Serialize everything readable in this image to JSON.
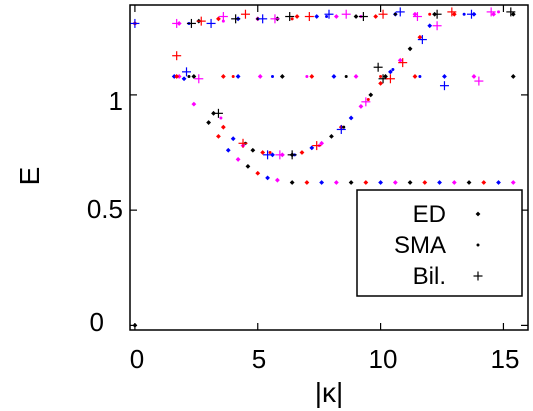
{
  "chart_data": {
    "type": "scatter",
    "title": "",
    "xlabel": "|κ|",
    "ylabel": "E",
    "xlim": [
      -0.2,
      16
    ],
    "ylim": [
      -0.02,
      1.39
    ],
    "xticks": [
      "0",
      "5",
      "10",
      "15"
    ],
    "yticks": [
      "0",
      "0.5",
      "1"
    ],
    "legend": {
      "placement": "lower-right",
      "entries": [
        "ED",
        "SMA",
        "Bil."
      ]
    },
    "colors": [
      "#000000",
      "#ff0000",
      "#0000ff",
      "#ff00ff"
    ],
    "series": [
      {
        "name": "ED",
        "marker": "diamond",
        "points": [
          [
            0,
            0.0
          ],
          [
            0,
            1.31
          ],
          [
            1.6,
            1.08
          ],
          [
            1.8,
            1.08
          ],
          [
            2.4,
            1.08
          ],
          [
            3.6,
            1.08
          ],
          [
            4.2,
            1.08
          ],
          [
            5.1,
            1.08
          ],
          [
            6.0,
            1.08
          ],
          [
            7.2,
            1.08
          ],
          [
            8.1,
            1.08
          ],
          [
            9.0,
            1.08
          ],
          [
            10.2,
            1.08
          ],
          [
            11.4,
            1.08
          ],
          [
            12.6,
            1.08
          ],
          [
            13.8,
            1.08
          ],
          [
            15.4,
            1.08
          ],
          [
            1.7,
            1.08
          ],
          [
            2.0,
            1.07
          ],
          [
            2.4,
            0.96
          ],
          [
            3.0,
            0.88
          ],
          [
            3.4,
            0.82
          ],
          [
            3.8,
            0.76
          ],
          [
            4.2,
            0.72
          ],
          [
            4.6,
            0.69
          ],
          [
            5.0,
            0.66
          ],
          [
            5.4,
            0.64
          ],
          [
            5.8,
            0.63
          ],
          [
            6.4,
            0.62
          ],
          [
            7.0,
            0.62
          ],
          [
            7.6,
            0.62
          ],
          [
            8.2,
            0.62
          ],
          [
            8.8,
            0.62
          ],
          [
            9.4,
            0.62
          ],
          [
            10.0,
            0.62
          ],
          [
            10.6,
            0.62
          ],
          [
            11.2,
            0.62
          ],
          [
            11.8,
            0.62
          ],
          [
            12.4,
            0.62
          ],
          [
            13.0,
            0.62
          ],
          [
            13.6,
            0.62
          ],
          [
            14.2,
            0.62
          ],
          [
            14.8,
            0.62
          ],
          [
            15.4,
            0.62
          ],
          [
            3.2,
            0.92
          ],
          [
            3.6,
            0.86
          ],
          [
            4.0,
            0.81
          ],
          [
            4.4,
            0.78
          ],
          [
            4.8,
            0.76
          ],
          [
            5.2,
            0.75
          ],
          [
            5.6,
            0.74
          ],
          [
            6.0,
            0.74
          ],
          [
            6.4,
            0.74
          ],
          [
            6.8,
            0.75
          ],
          [
            7.2,
            0.77
          ],
          [
            7.6,
            0.79
          ],
          [
            8.0,
            0.82
          ],
          [
            8.4,
            0.86
          ],
          [
            8.8,
            0.9
          ],
          [
            9.2,
            0.95
          ],
          [
            9.6,
            1.0
          ],
          [
            10.0,
            1.05
          ],
          [
            10.4,
            1.1
          ],
          [
            10.8,
            1.15
          ],
          [
            11.2,
            1.2
          ],
          [
            11.6,
            1.25
          ],
          [
            12.0,
            1.3
          ],
          [
            1.8,
            1.31
          ],
          [
            2.6,
            1.32
          ],
          [
            3.4,
            1.33
          ],
          [
            4.2,
            1.33
          ],
          [
            5.0,
            1.33
          ],
          [
            5.8,
            1.33
          ],
          [
            6.6,
            1.34
          ],
          [
            7.4,
            1.34
          ],
          [
            8.2,
            1.34
          ],
          [
            9.0,
            1.34
          ],
          [
            9.8,
            1.34
          ],
          [
            10.6,
            1.35
          ],
          [
            11.4,
            1.35
          ],
          [
            12.2,
            1.35
          ],
          [
            13.0,
            1.35
          ],
          [
            13.8,
            1.35
          ],
          [
            14.6,
            1.35
          ],
          [
            15.4,
            1.35
          ]
        ]
      },
      {
        "name": "SMA",
        "marker": "dot",
        "points": [
          [
            0,
            1.31
          ],
          [
            2.2,
            1.31
          ],
          [
            3.6,
            1.32
          ],
          [
            5.0,
            1.33
          ],
          [
            6.4,
            1.33
          ],
          [
            7.8,
            1.34
          ],
          [
            9.2,
            1.34
          ],
          [
            10.6,
            1.35
          ],
          [
            12.0,
            1.35
          ],
          [
            13.4,
            1.35
          ],
          [
            14.8,
            1.36
          ],
          [
            2.2,
            1.08
          ],
          [
            4.0,
            1.08
          ],
          [
            5.6,
            1.08
          ],
          [
            7.0,
            1.08
          ],
          [
            8.6,
            1.08
          ],
          [
            10.0,
            1.08
          ],
          [
            11.6,
            1.08
          ],
          [
            3.5,
            0.9
          ],
          [
            4.5,
            0.79
          ],
          [
            5.5,
            0.75
          ],
          [
            6.5,
            0.74
          ],
          [
            7.5,
            0.78
          ],
          [
            8.5,
            0.86
          ],
          [
            9.5,
            0.98
          ],
          [
            10.5,
            1.11
          ]
        ]
      },
      {
        "name": "Bil.",
        "marker": "plus",
        "points": [
          [
            0,
            1.31
          ],
          [
            1.7,
            1.31
          ],
          [
            2.3,
            1.31
          ],
          [
            2.7,
            1.32
          ],
          [
            3.1,
            1.31
          ],
          [
            3.6,
            1.34
          ],
          [
            4.1,
            1.33
          ],
          [
            4.5,
            1.35
          ],
          [
            5.2,
            1.33
          ],
          [
            5.7,
            1.33
          ],
          [
            6.3,
            1.34
          ],
          [
            7.1,
            1.34
          ],
          [
            7.9,
            1.35
          ],
          [
            8.6,
            1.35
          ],
          [
            9.3,
            1.34
          ],
          [
            10.1,
            1.35
          ],
          [
            10.8,
            1.36
          ],
          [
            11.5,
            1.34
          ],
          [
            12.3,
            1.35
          ],
          [
            12.9,
            1.36
          ],
          [
            13.7,
            1.35
          ],
          [
            14.5,
            1.36
          ],
          [
            15.3,
            1.36
          ],
          [
            1.7,
            1.17
          ],
          [
            2.1,
            1.1
          ],
          [
            2.6,
            1.07
          ],
          [
            3.4,
            0.92
          ],
          [
            4.4,
            0.79
          ],
          [
            5.4,
            0.74
          ],
          [
            5.9,
            0.74
          ],
          [
            6.4,
            0.74
          ],
          [
            7.4,
            0.78
          ],
          [
            8.4,
            0.85
          ],
          [
            9.4,
            0.97
          ],
          [
            10.1,
            1.07
          ],
          [
            10.9,
            1.14
          ],
          [
            11.7,
            1.24
          ],
          [
            12.3,
            1.3
          ],
          [
            9.9,
            1.12
          ],
          [
            10.4,
            1.07
          ],
          [
            12.6,
            1.04
          ],
          [
            14.0,
            1.06
          ]
        ]
      }
    ]
  }
}
